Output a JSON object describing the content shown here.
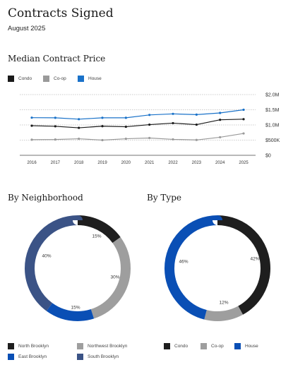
{
  "page": {
    "title": "Contracts Signed",
    "subtitle": "August 2025"
  },
  "chart_data": [
    {
      "type": "line",
      "title": "Median Contract Price",
      "x": [
        "2016",
        "2017",
        "2018",
        "2019",
        "2020",
        "2021",
        "2022",
        "2023",
        "2024",
        "2025"
      ],
      "y_ticks": [
        "$0",
        "$500K",
        "$1.0M",
        "$1.5M",
        "$2.0M"
      ],
      "ylim": [
        0,
        2000000
      ],
      "grid": true,
      "legend_position": "top-left",
      "series": [
        {
          "name": "Condo",
          "color": "#1a1a1a",
          "values": [
            975000,
            955000,
            905000,
            960000,
            940000,
            1010000,
            1060000,
            1010000,
            1170000,
            1190000
          ]
        },
        {
          "name": "Co-op",
          "color": "#9a9a9a",
          "values": [
            515000,
            520000,
            545000,
            500000,
            545000,
            570000,
            525000,
            505000,
            595000,
            720000
          ]
        },
        {
          "name": "House",
          "color": "#1a72c9",
          "values": [
            1240000,
            1235000,
            1190000,
            1235000,
            1235000,
            1330000,
            1365000,
            1340000,
            1395000,
            1500000
          ]
        }
      ]
    },
    {
      "type": "pie",
      "title": "By Neighborhood",
      "legend_position": "bottom",
      "slices": [
        {
          "name": "North Brooklyn",
          "value": 15,
          "label": "15%",
          "color": "#1e1e1e"
        },
        {
          "name": "Northwest Brooklyn",
          "value": 30,
          "label": "30%",
          "color": "#9e9e9e"
        },
        {
          "name": "East Brooklyn",
          "value": 15,
          "label": "15%",
          "color": "#0a4fb5"
        },
        {
          "name": "South Brooklyn",
          "value": 40,
          "label": "40%",
          "color": "#3b5386"
        }
      ]
    },
    {
      "type": "pie",
      "title": "By Type",
      "legend_position": "bottom",
      "slices": [
        {
          "name": "Condo",
          "value": 42,
          "label": "42%",
          "color": "#1e1e1e"
        },
        {
          "name": "Co-op",
          "value": 12,
          "label": "12%",
          "color": "#9e9e9e"
        },
        {
          "name": "House",
          "value": 46,
          "label": "46%",
          "color": "#0a4fb5"
        }
      ]
    }
  ]
}
